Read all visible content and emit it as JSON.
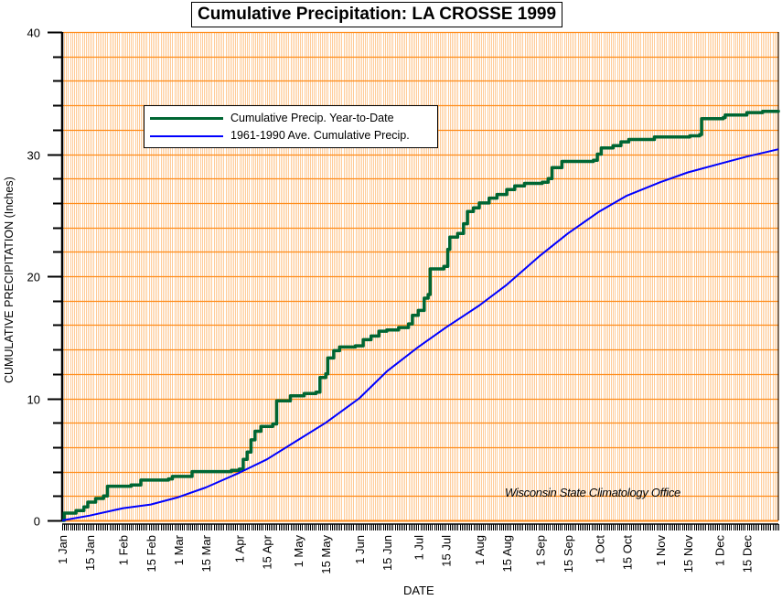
{
  "chart_data": {
    "type": "line",
    "title": "Cumulative Precipitation: LA CROSSE 1999",
    "xlabel": "DATE",
    "ylabel": "CUMULATIVE PRECIPITATION (Inches)",
    "ylim": [
      0,
      40
    ],
    "xlim_day_of_year": [
      1,
      365
    ],
    "y_ticks_major": [
      0,
      10,
      20,
      30,
      40
    ],
    "y_ticks_minor_step": 2,
    "grid": true,
    "legend_position": "top-left",
    "x_tick_labels": [
      {
        "label": "1 Jan",
        "day": 1
      },
      {
        "label": "15 Jan",
        "day": 15
      },
      {
        "label": "1 Feb",
        "day": 32
      },
      {
        "label": "15 Feb",
        "day": 46
      },
      {
        "label": "1 Mar",
        "day": 60
      },
      {
        "label": "15 Mar",
        "day": 74
      },
      {
        "label": "1 Apr",
        "day": 91
      },
      {
        "label": "15 Apr",
        "day": 105
      },
      {
        "label": "1 May",
        "day": 121
      },
      {
        "label": "15 May",
        "day": 135
      },
      {
        "label": "1 Jun",
        "day": 152
      },
      {
        "label": "15 Jun",
        "day": 166
      },
      {
        "label": "1 Jul",
        "day": 182
      },
      {
        "label": "15 Jul",
        "day": 196
      },
      {
        "label": "1 Aug",
        "day": 213
      },
      {
        "label": "15 Aug",
        "day": 227
      },
      {
        "label": "1 Sep",
        "day": 244
      },
      {
        "label": "15 Sep",
        "day": 258
      },
      {
        "label": "1 Oct",
        "day": 274
      },
      {
        "label": "15 Oct",
        "day": 288
      },
      {
        "label": "1 Nov",
        "day": 305
      },
      {
        "label": "15 Nov",
        "day": 319
      },
      {
        "label": "1 Dec",
        "day": 335
      },
      {
        "label": "15 Dec",
        "day": 349
      }
    ],
    "series": [
      {
        "name": "Cumulative Precip. Year-to-Date",
        "color": "#006633",
        "step": true,
        "points": [
          [
            1,
            0.0
          ],
          [
            2,
            0.6
          ],
          [
            8,
            0.8
          ],
          [
            12,
            1.1
          ],
          [
            14,
            1.5
          ],
          [
            18,
            1.8
          ],
          [
            22,
            2.0
          ],
          [
            24,
            2.8
          ],
          [
            36,
            2.9
          ],
          [
            41,
            3.3
          ],
          [
            55,
            3.4
          ],
          [
            57,
            3.6
          ],
          [
            67,
            4.0
          ],
          [
            87,
            4.1
          ],
          [
            91,
            4.2
          ],
          [
            93,
            5.0
          ],
          [
            95,
            5.6
          ],
          [
            97,
            6.6
          ],
          [
            99,
            7.3
          ],
          [
            102,
            7.7
          ],
          [
            108,
            7.9
          ],
          [
            110,
            9.8
          ],
          [
            117,
            10.2
          ],
          [
            124,
            10.4
          ],
          [
            130,
            10.5
          ],
          [
            132,
            11.7
          ],
          [
            135,
            12.0
          ],
          [
            136,
            13.3
          ],
          [
            139,
            13.9
          ],
          [
            142,
            14.2
          ],
          [
            150,
            14.3
          ],
          [
            154,
            14.8
          ],
          [
            158,
            15.1
          ],
          [
            162,
            15.5
          ],
          [
            166,
            15.6
          ],
          [
            172,
            15.8
          ],
          [
            177,
            16.1
          ],
          [
            179,
            16.8
          ],
          [
            182,
            17.2
          ],
          [
            185,
            18.2
          ],
          [
            187,
            18.5
          ],
          [
            188,
            20.6
          ],
          [
            195,
            20.8
          ],
          [
            197,
            22.2
          ],
          [
            198,
            23.2
          ],
          [
            202,
            23.5
          ],
          [
            205,
            24.3
          ],
          [
            207,
            25.3
          ],
          [
            210,
            25.6
          ],
          [
            213,
            26.0
          ],
          [
            218,
            26.4
          ],
          [
            222,
            26.7
          ],
          [
            227,
            27.1
          ],
          [
            231,
            27.4
          ],
          [
            236,
            27.6
          ],
          [
            245,
            27.7
          ],
          [
            248,
            28.0
          ],
          [
            250,
            28.9
          ],
          [
            255,
            29.4
          ],
          [
            271,
            29.5
          ],
          [
            273,
            30.0
          ],
          [
            275,
            30.5
          ],
          [
            281,
            30.7
          ],
          [
            285,
            31.0
          ],
          [
            289,
            31.2
          ],
          [
            302,
            31.4
          ],
          [
            320,
            31.5
          ],
          [
            325,
            31.6
          ],
          [
            326,
            32.9
          ],
          [
            337,
            33.0
          ],
          [
            338,
            33.2
          ],
          [
            349,
            33.4
          ],
          [
            357,
            33.5
          ],
          [
            365,
            33.6
          ]
        ]
      },
      {
        "name": "1961-1990 Ave. Cumulative Precip.",
        "color": "#0000ff",
        "step": false,
        "points": [
          [
            1,
            0.0
          ],
          [
            15,
            0.4
          ],
          [
            32,
            1.0
          ],
          [
            46,
            1.3
          ],
          [
            60,
            1.9
          ],
          [
            74,
            2.7
          ],
          [
            91,
            3.9
          ],
          [
            105,
            5.0
          ],
          [
            121,
            6.6
          ],
          [
            135,
            8.0
          ],
          [
            152,
            10.0
          ],
          [
            166,
            12.2
          ],
          [
            182,
            14.2
          ],
          [
            196,
            15.8
          ],
          [
            213,
            17.6
          ],
          [
            227,
            19.3
          ],
          [
            244,
            21.7
          ],
          [
            258,
            23.5
          ],
          [
            274,
            25.3
          ],
          [
            288,
            26.6
          ],
          [
            305,
            27.7
          ],
          [
            319,
            28.5
          ],
          [
            335,
            29.2
          ],
          [
            349,
            29.8
          ],
          [
            365,
            30.4
          ]
        ]
      }
    ],
    "annotations": [
      "Wisconsin State Climatology Office"
    ]
  },
  "colors": {
    "major_grid": "#ff8c1a",
    "minor_day_grid": "#ffcc99",
    "axis": "#000000"
  }
}
